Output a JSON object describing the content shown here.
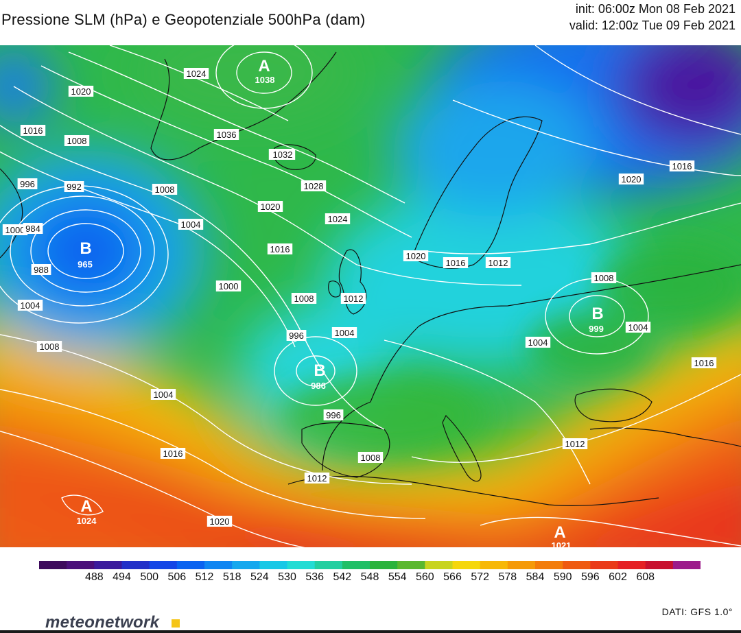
{
  "header": {
    "title": "Pressione SLM (hPa) e Geopotenziale 500hPa (dam)",
    "init": "init: 06:00z Mon 08 Feb 2021",
    "valid": "valid: 12:00z Tue 09 Feb 2021"
  },
  "colorbar": {
    "labels": [
      "488",
      "494",
      "500",
      "506",
      "512",
      "518",
      "524",
      "530",
      "536",
      "542",
      "548",
      "554",
      "560",
      "566",
      "572",
      "578",
      "584",
      "590",
      "596",
      "602",
      "608"
    ],
    "colors": [
      "#3d0a5c",
      "#4a0f7a",
      "#3a1a9c",
      "#2230c8",
      "#1446e6",
      "#0a63f0",
      "#0f86f2",
      "#15a8ee",
      "#18c8e6",
      "#22dcd4",
      "#22cfa0",
      "#1fbf66",
      "#2ab33c",
      "#5ab82e",
      "#c8d41e",
      "#f5d70c",
      "#f7b808",
      "#f59a08",
      "#f37c0a",
      "#ef5a10",
      "#ea3a18",
      "#e52024",
      "#c8102e",
      "#9c1a8a"
    ]
  },
  "pressure_centers": [
    {
      "letter": "A",
      "value": "1038"
    },
    {
      "letter": "B",
      "value": "965"
    },
    {
      "letter": "B",
      "value": "986"
    },
    {
      "letter": "B",
      "value": "999"
    },
    {
      "letter": "A",
      "value": "1024"
    },
    {
      "letter": "A",
      "value": "1021"
    }
  ],
  "isobar_labels": [
    "1020",
    "1016",
    "1008",
    "992",
    "996",
    "1000",
    "984",
    "988",
    "1004",
    "1024",
    "1036",
    "1012",
    "1032",
    "1028",
    "1020",
    "1004",
    "1016",
    "1000",
    "1008",
    "996",
    "1024",
    "1012",
    "1004",
    "1008",
    "1020",
    "1016",
    "1016",
    "1012",
    "1008",
    "1008",
    "1004",
    "1004",
    "996",
    "1004",
    "1016",
    "1008",
    "1012",
    "1012",
    "1016",
    "1020",
    "1020"
  ],
  "branding": {
    "logo_text": "meteonetwork",
    "source": "DATI: GFS 1.0°"
  }
}
